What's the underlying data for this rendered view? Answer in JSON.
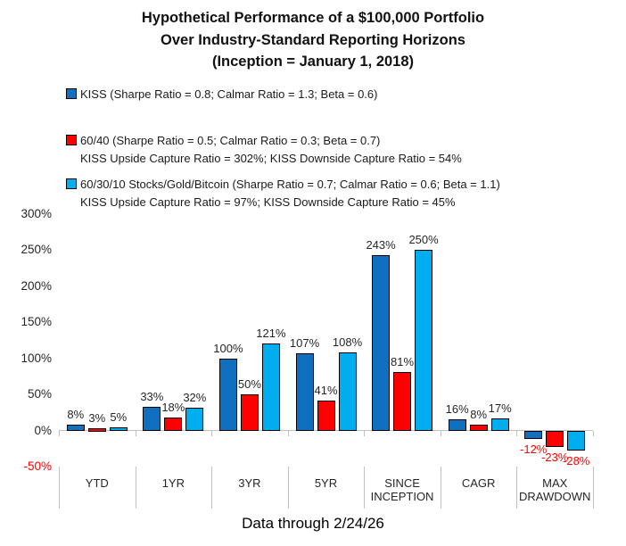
{
  "title": {
    "line1": "Hypothetical Performance of a $100,000 Portfolio",
    "line2": "Over Industry-Standard Reporting Horizons",
    "line3": "(Inception = January 1, 2018)"
  },
  "legend": {
    "items": [
      {
        "name": "KISS",
        "color": "#0F70C0",
        "label": "KISS (Sharpe Ratio = 0.8; Calmar Ratio = 1.3; Beta = 0.6)",
        "subline": ""
      },
      {
        "name": "60/40",
        "color": "#FE0000",
        "label": "60/40 (Sharpe Ratio = 0.5; Calmar Ratio = 0.3; Beta = 0.7)",
        "subline": "KISS Upside Capture Ratio = 302%; KISS Downside Capture Ratio = 54%"
      },
      {
        "name": "60/30/10",
        "color": "#00AEEF",
        "label": "60/30/10 Stocks/Gold/Bitcoin (Sharpe Ratio = 0.7; Calmar Ratio = 0.6; Beta = 1.1)",
        "subline": "KISS Upside Capture Ratio = 97%; KISS Downside Capture Ratio = 45%"
      }
    ]
  },
  "chart_data": {
    "type": "bar",
    "title": "Hypothetical Performance of a $100,000 Portfolio Over Industry-Standard Reporting Horizons (Inception = January 1, 2018)",
    "categories": [
      "YTD",
      "1YR",
      "3YR",
      "5YR",
      "SINCE INCEPTION",
      "CAGR",
      "MAX DRAWDOWN"
    ],
    "series": [
      {
        "name": "KISS",
        "color": "#0F70C0",
        "values": [
          8,
          33,
          100,
          107,
          243,
          16,
          -12
        ]
      },
      {
        "name": "60/40",
        "color": "#FE0000",
        "values": [
          3,
          18,
          50,
          41,
          81,
          8,
          -23
        ]
      },
      {
        "name": "60/30/10 Stocks/Gold/Bitcoin",
        "color": "#00AEEF",
        "values": [
          5,
          32,
          121,
          108,
          250,
          17,
          -28
        ]
      }
    ],
    "value_label_format": "{v}%",
    "y_axis": {
      "min": -50,
      "max": 300,
      "step": 50,
      "tick_format": "{v}%"
    },
    "xlabel": "",
    "ylabel": "",
    "grid": false,
    "legend_position": "top-left",
    "negative_label_color": "#FF0000",
    "axis_color": "#BFBFBF"
  },
  "footer": {
    "caption": "Data through 2/24/26"
  }
}
